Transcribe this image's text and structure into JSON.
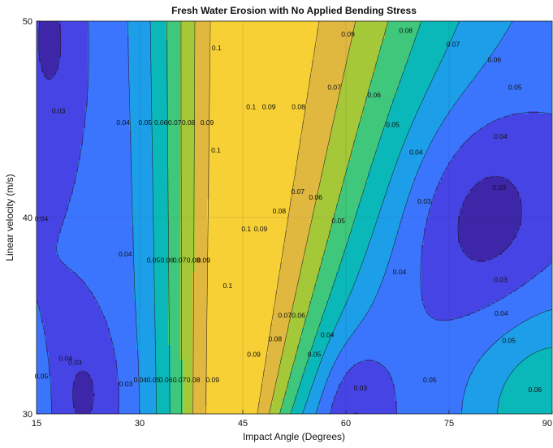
{
  "chart_data": {
    "type": "contour",
    "title": "Fresh Water Erosion with No Applied Bending Stress",
    "xlabel": "Impact Angle (Degrees)",
    "ylabel": "Linear velocity (m/s)",
    "xlim": [
      15,
      90
    ],
    "ylim": [
      30,
      50
    ],
    "xticks": [
      "15",
      "30",
      "45",
      "60",
      "75",
      "90"
    ],
    "yticks": [
      "30",
      "40",
      "50"
    ],
    "grid": true,
    "levels": [
      0.03,
      0.04,
      0.05,
      0.06,
      0.07,
      0.08,
      0.09,
      0.1
    ],
    "colormap": [
      "#3e26a8",
      "#4744e6",
      "#3b75fe",
      "#1d9ee9",
      "#0bb8b9",
      "#3fc87c",
      "#a5c839",
      "#e1b83f",
      "#f6d035"
    ],
    "contour_labels": [
      {
        "text": "0.03",
        "x": 18.2,
        "y": 45.4
      },
      {
        "text": "0.04",
        "x": 27.6,
        "y": 44.8
      },
      {
        "text": "0.05",
        "x": 30.8,
        "y": 44.8
      },
      {
        "text": "0.06",
        "x": 33.1,
        "y": 44.8
      },
      {
        "text": "0.07",
        "x": 35.1,
        "y": 44.8
      },
      {
        "text": "0.08",
        "x": 37.1,
        "y": 44.8
      },
      {
        "text": "0.09",
        "x": 39.8,
        "y": 44.8
      },
      {
        "text": "0.1",
        "x": 41.2,
        "y": 48.6
      },
      {
        "text": "0.1",
        "x": 41.1,
        "y": 43.4
      },
      {
        "text": "0.1",
        "x": 46.2,
        "y": 45.6
      },
      {
        "text": "0.09",
        "x": 48.8,
        "y": 45.6
      },
      {
        "text": "0.08",
        "x": 53.1,
        "y": 45.6
      },
      {
        "text": "0.07",
        "x": 58.3,
        "y": 46.6
      },
      {
        "text": "0.06",
        "x": 64.1,
        "y": 46.2
      },
      {
        "text": "0.05",
        "x": 66.8,
        "y": 44.7
      },
      {
        "text": "0.04",
        "x": 70.2,
        "y": 43.3
      },
      {
        "text": "0.09",
        "x": 60.3,
        "y": 49.3
      },
      {
        "text": "0.08",
        "x": 68.7,
        "y": 49.5
      },
      {
        "text": "0.07",
        "x": 75.6,
        "y": 48.8
      },
      {
        "text": "0.06",
        "x": 81.6,
        "y": 48.0
      },
      {
        "text": "0.05",
        "x": 84.6,
        "y": 46.6
      },
      {
        "text": "0.04",
        "x": 82.5,
        "y": 44.1
      },
      {
        "text": "0.03",
        "x": 82.3,
        "y": 41.5
      },
      {
        "text": "0.03",
        "x": 71.4,
        "y": 40.8
      },
      {
        "text": "0.04",
        "x": 15.7,
        "y": 39.9
      },
      {
        "text": "0.04",
        "x": 27.9,
        "y": 38.1
      },
      {
        "text": "0.05",
        "x": 32.0,
        "y": 37.8
      },
      {
        "text": "0.06",
        "x": 34.0,
        "y": 37.8
      },
      {
        "text": "0.07",
        "x": 35.8,
        "y": 37.8
      },
      {
        "text": "0.08",
        "x": 37.8,
        "y": 37.8
      },
      {
        "text": "0.09",
        "x": 39.3,
        "y": 37.8
      },
      {
        "text": "0.1",
        "x": 45.5,
        "y": 39.4
      },
      {
        "text": "0.09",
        "x": 47.6,
        "y": 39.4
      },
      {
        "text": "0.08",
        "x": 50.3,
        "y": 40.3
      },
      {
        "text": "0.07",
        "x": 53.0,
        "y": 41.3
      },
      {
        "text": "0.06",
        "x": 55.6,
        "y": 41.0
      },
      {
        "text": "0.05",
        "x": 58.9,
        "y": 39.8
      },
      {
        "text": "0.04",
        "x": 67.8,
        "y": 37.2
      },
      {
        "text": "0.03",
        "x": 82.5,
        "y": 36.8
      },
      {
        "text": "0.1",
        "x": 42.8,
        "y": 36.5
      },
      {
        "text": "0.07",
        "x": 51.1,
        "y": 35.0
      },
      {
        "text": "0.06",
        "x": 53.1,
        "y": 35.0
      },
      {
        "text": "0.08",
        "x": 49.7,
        "y": 33.8
      },
      {
        "text": "0.05",
        "x": 55.4,
        "y": 33.0
      },
      {
        "text": "0.04",
        "x": 57.3,
        "y": 34.0
      },
      {
        "text": "0.04",
        "x": 82.6,
        "y": 35.1
      },
      {
        "text": "0.05",
        "x": 83.7,
        "y": 33.7
      },
      {
        "text": "0.06",
        "x": 87.5,
        "y": 31.2
      },
      {
        "text": "0.03",
        "x": 20.6,
        "y": 32.6
      },
      {
        "text": "0.04",
        "x": 19.2,
        "y": 32.8
      },
      {
        "text": "0.05",
        "x": 15.7,
        "y": 31.9
      },
      {
        "text": "0.03",
        "x": 28.0,
        "y": 31.5
      },
      {
        "text": "0.04",
        "x": 30.1,
        "y": 31.7
      },
      {
        "text": "0.05",
        "x": 32.0,
        "y": 31.7
      },
      {
        "text": "0.06",
        "x": 33.8,
        "y": 31.7
      },
      {
        "text": "0.07",
        "x": 35.8,
        "y": 31.7
      },
      {
        "text": "0.08",
        "x": 37.8,
        "y": 31.7
      },
      {
        "text": "0.09",
        "x": 40.6,
        "y": 31.7
      },
      {
        "text": "0.09",
        "x": 46.6,
        "y": 33.0
      },
      {
        "text": "0.03",
        "x": 62.1,
        "y": 31.3
      },
      {
        "text": "0.05",
        "x": 72.2,
        "y": 31.7
      }
    ]
  }
}
